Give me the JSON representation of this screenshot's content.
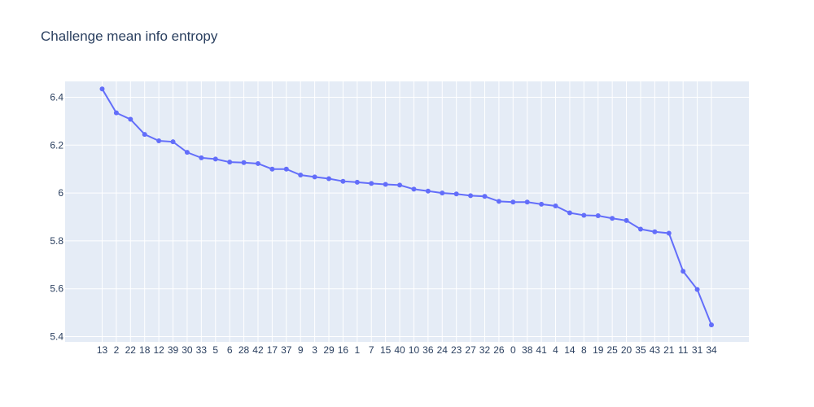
{
  "chart_data": {
    "type": "line",
    "title": "Challenge mean info entropy",
    "xlabel": "",
    "ylabel": "",
    "ylim": [
      5.4,
      6.4
    ],
    "yticks": [
      "5.4",
      "5.6",
      "5.8",
      "6",
      "6.2",
      "6.4"
    ],
    "grid": true,
    "legend": "none",
    "categories": [
      "13",
      "2",
      "22",
      "18",
      "12",
      "39",
      "30",
      "33",
      "5",
      "6",
      "28",
      "42",
      "17",
      "37",
      "9",
      "3",
      "29",
      "16",
      "1",
      "7",
      "15",
      "40",
      "10",
      "36",
      "24",
      "23",
      "27",
      "32",
      "26",
      "0",
      "38",
      "41",
      "4",
      "14",
      "8",
      "19",
      "25",
      "20",
      "35",
      "43",
      "21",
      "11",
      "31",
      "34"
    ],
    "series": [
      {
        "values": [
          6.435,
          6.335,
          6.308,
          6.245,
          6.218,
          6.214,
          6.17,
          6.147,
          6.142,
          6.129,
          6.127,
          6.123,
          6.1,
          6.1,
          6.075,
          6.067,
          6.06,
          6.049,
          6.045,
          6.04,
          6.036,
          6.033,
          6.016,
          6.008,
          6.0,
          5.996,
          5.989,
          5.986,
          5.965,
          5.962,
          5.962,
          5.953,
          5.946,
          5.917,
          5.907,
          5.905,
          5.894,
          5.885,
          5.849,
          5.838,
          5.832,
          5.673,
          5.597,
          5.449
        ],
        "color": "#636efa"
      }
    ],
    "colors": {
      "plot_bg": "#e5ecf6",
      "grid": "#ffffff",
      "text": "#2a3f5f",
      "line": "#636efa"
    }
  }
}
